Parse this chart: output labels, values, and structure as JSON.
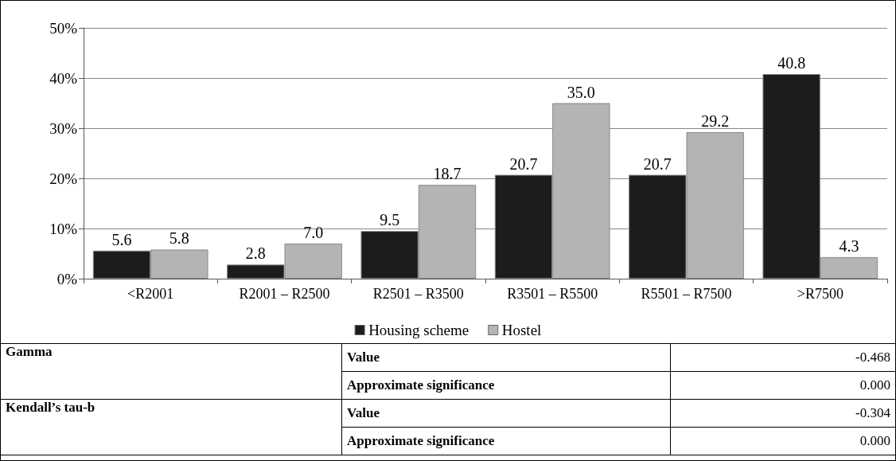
{
  "chart_data": {
    "type": "bar",
    "categories": [
      "<R2001",
      "R2001 – R2500",
      "R2501 – R3500",
      "R3501 – R5500",
      "R5501 – R7500",
      ">R7500"
    ],
    "series": [
      {
        "name": "Housing scheme",
        "color": "#1c1c1c",
        "values": [
          5.6,
          2.8,
          9.5,
          20.7,
          20.7,
          40.8
        ],
        "value_labels": [
          "5.6",
          "2.8",
          "9.5",
          "20.7",
          "20.7",
          "40.8"
        ]
      },
      {
        "name": "Hostel",
        "color": "#b4b4b4",
        "values": [
          5.8,
          7.0,
          18.7,
          35.0,
          29.2,
          4.3
        ],
        "value_labels": [
          "5.8",
          "7.0",
          "18.7",
          "35.0",
          "29.2",
          "4.3"
        ]
      }
    ],
    "ylim": [
      0,
      50
    ],
    "yticks": [
      {
        "value": 0,
        "label": "0%"
      },
      {
        "value": 10,
        "label": "10%"
      },
      {
        "value": 20,
        "label": "20%"
      },
      {
        "value": 30,
        "label": "30%"
      },
      {
        "value": 40,
        "label": "40%"
      },
      {
        "value": 50,
        "label": "50%"
      }
    ],
    "grid": "y",
    "legend": "bottom",
    "annotations": [
      "Gamma",
      "Value",
      "-0.468",
      "Approximate significance",
      "0.000",
      "Kendall’s tau-b",
      "Value",
      "-0.304",
      "Approximate significance",
      "0.000"
    ]
  }
}
